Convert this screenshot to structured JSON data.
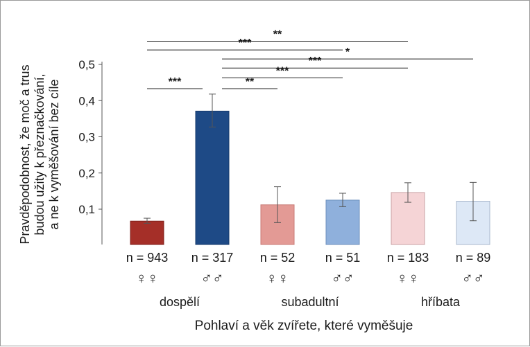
{
  "chart_data": {
    "type": "bar",
    "title": "",
    "ylabel_lines": [
      "Pravděpodobnost, že moč a trus",
      "budou užity k přeznačkování,",
      "a ne k vyměšování bez cíle"
    ],
    "xlabel": "Pohlaví a věk zvířete, které vyměšuje",
    "ylim": [
      0.02,
      0.5
    ],
    "yticks": [
      0.1,
      0.2,
      0.3,
      0.4,
      0.5
    ],
    "ytick_labels": [
      "0,1",
      "0,2",
      "0,3",
      "0,4",
      "0,5"
    ],
    "categories": [
      "n = 943",
      "n = 317",
      "n = 52",
      "n = 51",
      "n = 183",
      "n = 89"
    ],
    "sex_symbols": [
      "♀♀",
      "♂♂",
      "♀♀",
      "♂♂",
      "♀♀",
      "♂♂"
    ],
    "groups": [
      {
        "label": "dospělí",
        "from": 0,
        "to": 1
      },
      {
        "label": "subadultní",
        "from": 2,
        "to": 3
      },
      {
        "label": "hříbata",
        "from": 4,
        "to": 5
      }
    ],
    "values": [
      0.067,
      0.371,
      0.112,
      0.125,
      0.146,
      0.122
    ],
    "err_low": [
      0.061,
      0.327,
      0.063,
      0.107,
      0.119,
      0.068
    ],
    "err_high": [
      0.075,
      0.418,
      0.162,
      0.144,
      0.173,
      0.174
    ],
    "colors": [
      "#a52f28",
      "#1e4a86",
      "#e39a95",
      "#8fb0dc",
      "#f5d4d6",
      "#dde8f6"
    ],
    "edge_colors": [
      "#7f1f1a",
      "#16396b",
      "#c87a75",
      "#6c8fbd",
      "#c9a2a4",
      "#a9b8cc"
    ],
    "significance": [
      {
        "from": 0,
        "to": 1,
        "label": "***",
        "y": 0.433
      },
      {
        "from": 1,
        "to": 2,
        "label": "**",
        "y": 0.433
      },
      {
        "from": 1,
        "to": 3,
        "label": "***",
        "y": 0.463
      },
      {
        "from": 1,
        "to": 4,
        "label": "***",
        "y": 0.49
      },
      {
        "from": 1,
        "to": 5,
        "label": "*",
        "y": 0.515
      },
      {
        "from": 0,
        "to": 3,
        "label": "***",
        "y": 0.54
      },
      {
        "from": 0,
        "to": 4,
        "label": "**",
        "y": 0.564
      }
    ],
    "grid": false,
    "legend": "none"
  }
}
